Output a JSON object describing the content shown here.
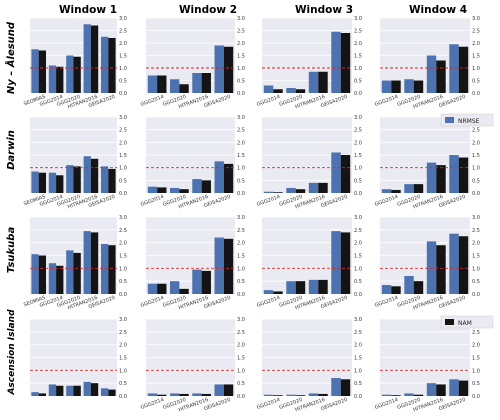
{
  "figure": {
    "column_titles": [
      "Window 1",
      "Window 2",
      "Window 3",
      "Window 4"
    ],
    "row_titles": [
      "Ny – Ålesund",
      "Darwin",
      "Tsukuba",
      "Ascension Island"
    ],
    "legend_nrmse": "NRMSE",
    "legend_nam": "NAM",
    "y_tick_labels": [
      "0.0",
      "0.5",
      "1.0",
      "1.5",
      "2.0",
      "2.5",
      "3.0"
    ]
  },
  "colors": {
    "nrmse": "#4c72b0",
    "nam": "#141414",
    "panel_bg": "#eaeaf2",
    "grid": "#ffffff",
    "reference_line": "#d62728"
  },
  "chart_data": {
    "type": "bar",
    "ylim": [
      0,
      3
    ],
    "reference_line": 1.0,
    "series_names": [
      "NRMSE",
      "NAM"
    ],
    "columns": [
      {
        "title": "Window 1",
        "categories": [
          "SEOM-IAS",
          "GGG2014",
          "GGG2020",
          "HITRAN2016",
          "GEISA2020"
        ],
        "tick_labels": [
          "SEOMIAS",
          "GGG2014",
          "GGG2020",
          "HITRAN2016",
          "GEISA2020"
        ]
      },
      {
        "title": "Window 2",
        "categories": [
          "GGG2014",
          "GGG2020",
          "HITRAN2016",
          "GEISA2020"
        ],
        "tick_labels": [
          "GGG2014",
          "GGG2020",
          "HITRAN2016",
          "GEISA2020"
        ]
      },
      {
        "title": "Window 3",
        "categories": [
          "GGG2014",
          "GGG2020",
          "HITRAN2016",
          "GEISA2020"
        ],
        "tick_labels": [
          "GGG2014",
          "GGG2020",
          "HITRAN2016",
          "GEISA2020"
        ]
      },
      {
        "title": "Window 4",
        "categories": [
          "GGG2014",
          "GGG2020",
          "HITRAN2016",
          "GEISA2020"
        ],
        "tick_labels": [
          "GGG2014",
          "GGG2020",
          "HITRAN2016",
          "GEISA2020"
        ]
      }
    ],
    "rows": [
      {
        "site": "Ny – Ålesund",
        "panels": [
          {
            "nrmse": [
              1.75,
              1.1,
              1.5,
              2.75,
              2.25
            ],
            "nam": [
              1.7,
              1.05,
              1.45,
              2.7,
              2.2
            ]
          },
          {
            "nrmse": [
              0.7,
              0.55,
              0.8,
              1.9
            ],
            "nam": [
              0.7,
              0.35,
              0.8,
              1.85
            ]
          },
          {
            "nrmse": [
              0.3,
              0.2,
              0.85,
              2.45
            ],
            "nam": [
              0.15,
              0.15,
              0.85,
              2.4
            ]
          },
          {
            "nrmse": [
              0.5,
              0.55,
              1.5,
              1.95
            ],
            "nam": [
              0.5,
              0.5,
              1.3,
              1.85
            ]
          }
        ]
      },
      {
        "site": "Darwin",
        "panels": [
          {
            "nrmse": [
              0.85,
              0.8,
              1.1,
              1.45,
              1.05
            ],
            "nam": [
              0.8,
              0.7,
              1.05,
              1.35,
              0.95
            ]
          },
          {
            "nrmse": [
              0.25,
              0.2,
              0.55,
              1.25
            ],
            "nam": [
              0.22,
              0.15,
              0.5,
              1.15
            ]
          },
          {
            "nrmse": [
              0.05,
              0.2,
              0.4,
              1.6
            ],
            "nam": [
              0.03,
              0.15,
              0.4,
              1.5
            ]
          },
          {
            "nrmse": [
              0.15,
              0.35,
              1.2,
              1.5
            ],
            "nam": [
              0.12,
              0.35,
              1.1,
              1.4
            ]
          }
        ]
      },
      {
        "site": "Tsukuba",
        "panels": [
          {
            "nrmse": [
              1.55,
              1.2,
              1.7,
              2.45,
              1.95
            ],
            "nam": [
              1.5,
              1.1,
              1.6,
              2.4,
              1.9
            ]
          },
          {
            "nrmse": [
              0.4,
              0.5,
              0.95,
              2.2
            ],
            "nam": [
              0.4,
              0.2,
              0.9,
              2.15
            ]
          },
          {
            "nrmse": [
              0.15,
              0.5,
              0.55,
              2.45
            ],
            "nam": [
              0.1,
              0.5,
              0.55,
              2.4
            ]
          },
          {
            "nrmse": [
              0.35,
              0.7,
              2.05,
              2.35
            ],
            "nam": [
              0.3,
              0.5,
              1.9,
              2.25
            ]
          }
        ]
      },
      {
        "site": "Ascension Island",
        "panels": [
          {
            "nrmse": [
              0.15,
              0.45,
              0.4,
              0.55
            ],
            "nam": [
              0.1,
              0.4,
              0.4,
              0.5
            ],
            "extra": {
              "nrmse": 0.3,
              "nam": 0.25
            }
          },
          {
            "nrmse": [
              0.1,
              0.1,
              0.1,
              0.45
            ],
            "nam": [
              0.05,
              0.08,
              0.08,
              0.45
            ]
          },
          {
            "nrmse": [
              0.05,
              0.05,
              0.1,
              0.7
            ],
            "nam": [
              0.03,
              0.03,
              0.08,
              0.65
            ]
          },
          {
            "nrmse": [
              0.05,
              0.1,
              0.5,
              0.65
            ],
            "nam": [
              0.03,
              0.05,
              0.45,
              0.6
            ]
          }
        ]
      }
    ]
  }
}
